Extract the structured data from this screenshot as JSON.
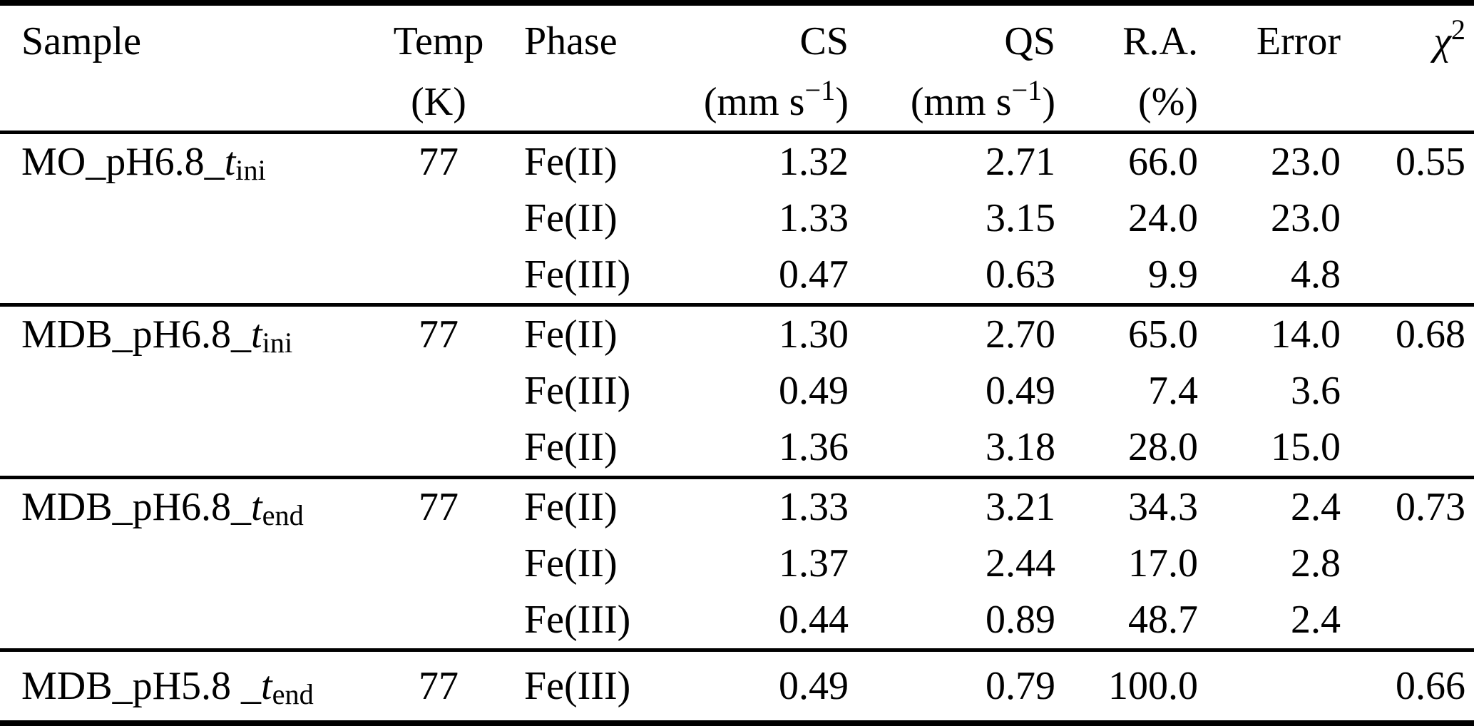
{
  "table": {
    "header": {
      "sample": {
        "label": "Sample"
      },
      "temp": {
        "label": "Temp",
        "unit": "(K)"
      },
      "phase": {
        "label": "Phase"
      },
      "cs": {
        "label": "CS",
        "unit_pre": "(mm s",
        "unit_sup": "−1",
        "unit_post": ")"
      },
      "qs": {
        "label": "QS",
        "unit_pre": "(mm s",
        "unit_sup": "−1",
        "unit_post": ")"
      },
      "ra": {
        "label": "R.A.",
        "unit": "(%)"
      },
      "error": {
        "label": "Error"
      },
      "chi2": {
        "label": "χ",
        "sup": "2"
      }
    },
    "blocks": [
      {
        "sample": {
          "prefix": "MO_pH6.8_",
          "t": "t",
          "sub": "ini"
        },
        "temp": "77",
        "chi2": "0.55",
        "rows": [
          {
            "phase": "Fe(II)",
            "cs": "1.32",
            "qs": "2.71",
            "ra": "66.0",
            "error": "23.0"
          },
          {
            "phase": "Fe(II)",
            "cs": "1.33",
            "qs": "3.15",
            "ra": "24.0",
            "error": "23.0"
          },
          {
            "phase": "Fe(III)",
            "cs": "0.47",
            "qs": "0.63",
            "ra": "9.9",
            "error": "4.8"
          }
        ]
      },
      {
        "sample": {
          "prefix": "MDB_pH6.8_",
          "t": "t",
          "sub": "ini"
        },
        "temp": "77",
        "chi2": "0.68",
        "rows": [
          {
            "phase": "Fe(II)",
            "cs": "1.30",
            "qs": "2.70",
            "ra": "65.0",
            "error": "14.0"
          },
          {
            "phase": "Fe(III)",
            "cs": "0.49",
            "qs": "0.49",
            "ra": "7.4",
            "error": "3.6"
          },
          {
            "phase": "Fe(II)",
            "cs": "1.36",
            "qs": "3.18",
            "ra": "28.0",
            "error": "15.0"
          }
        ]
      },
      {
        "sample": {
          "prefix": "MDB_pH6.8_",
          "t": "t",
          "sub": "end"
        },
        "temp": "77",
        "chi2": "0.73",
        "rows": [
          {
            "phase": "Fe(II)",
            "cs": "1.33",
            "qs": "3.21",
            "ra": "34.3",
            "error": "2.4"
          },
          {
            "phase": "Fe(II)",
            "cs": "1.37",
            "qs": "2.44",
            "ra": "17.0",
            "error": "2.8"
          },
          {
            "phase": "Fe(III)",
            "cs": "0.44",
            "qs": "0.89",
            "ra": "48.7",
            "error": "2.4"
          }
        ]
      },
      {
        "sample": {
          "prefix": "MDB_pH5.8 _",
          "t": "t",
          "sub": "end"
        },
        "temp": "77",
        "chi2": "0.66",
        "rows": [
          {
            "phase": "Fe(III)",
            "cs": "0.49",
            "qs": "0.79",
            "ra": "100.0",
            "error": ""
          }
        ]
      }
    ]
  }
}
